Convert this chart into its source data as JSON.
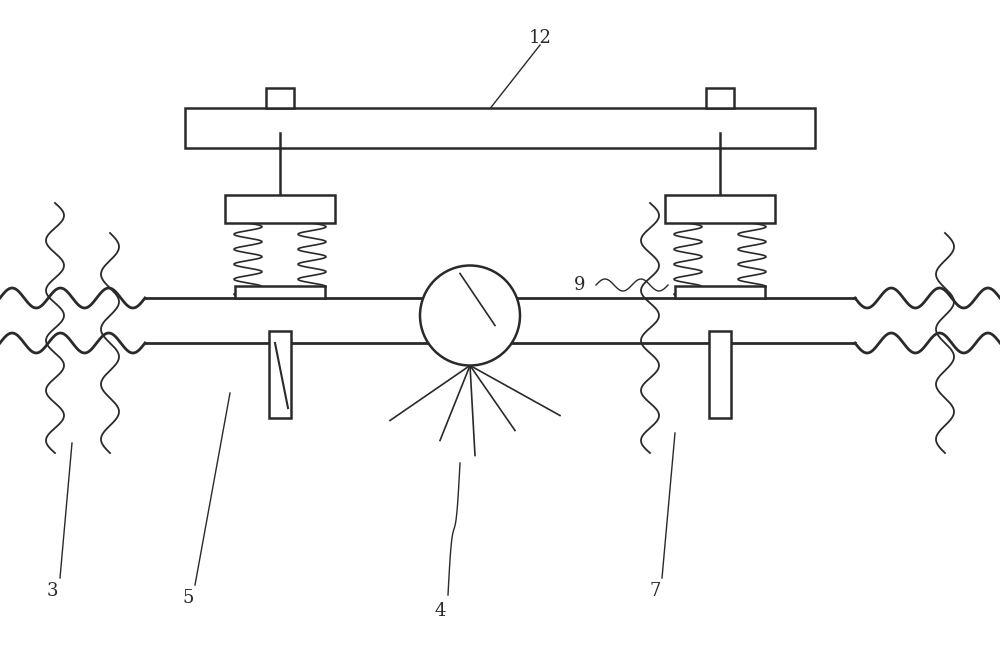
{
  "bg_color": "#ffffff",
  "line_color": "#2a2a2a",
  "label_color": "#2a2a2a",
  "figsize": [
    10.0,
    6.53
  ],
  "dpi": 100
}
